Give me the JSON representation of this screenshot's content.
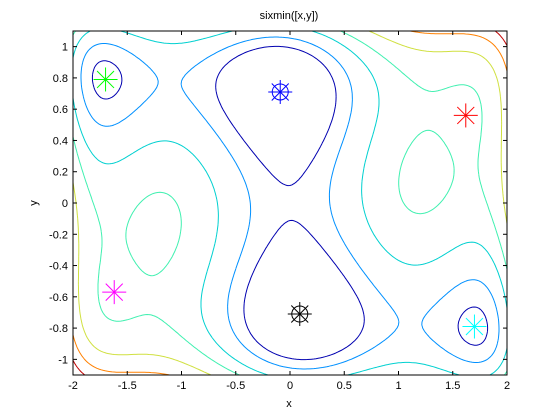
{
  "chart_data": {
    "type": "contour",
    "title": "sixmin([x,y])",
    "x_label": "x",
    "y_label": "y",
    "xlim": [
      -2,
      2
    ],
    "ylim": [
      -1.1,
      1.1
    ],
    "xticks": [
      -2,
      -1.5,
      -1,
      -0.5,
      0,
      0.5,
      1,
      1.5,
      2
    ],
    "yticks": [
      -1,
      -0.8,
      -0.6,
      -0.4,
      -0.2,
      0,
      0.2,
      0.4,
      0.6,
      0.8,
      1
    ],
    "levels": [
      -0.05,
      0.5,
      1.4,
      2.3,
      3.4,
      4.6,
      5.8
    ],
    "level_colors": [
      "#0000b0",
      "#0090ff",
      "#00d0d0",
      "#40f0b0",
      "#d0e040",
      "#ff8000",
      "#c00000"
    ],
    "series": [
      {
        "color": "#0000ff",
        "marker": "circled-star",
        "x": [
          -0.09
        ],
        "y": [
          0.71
        ]
      },
      {
        "color": "#000000",
        "marker": "circled-star",
        "x": [
          0.09
        ],
        "y": [
          -0.71
        ]
      },
      {
        "color": "#00ff00",
        "marker": "star",
        "x": [
          -1.7
        ],
        "y": [
          0.79
        ]
      },
      {
        "color": "#00ffff",
        "marker": "star",
        "x": [
          1.7
        ],
        "y": [
          -0.79
        ]
      },
      {
        "color": "#ff0000",
        "marker": "star",
        "x": [
          1.62
        ],
        "y": [
          0.56
        ]
      },
      {
        "color": "#ff00ff",
        "marker": "star",
        "x": [
          -1.62
        ],
        "y": [
          -0.57
        ]
      }
    ]
  }
}
